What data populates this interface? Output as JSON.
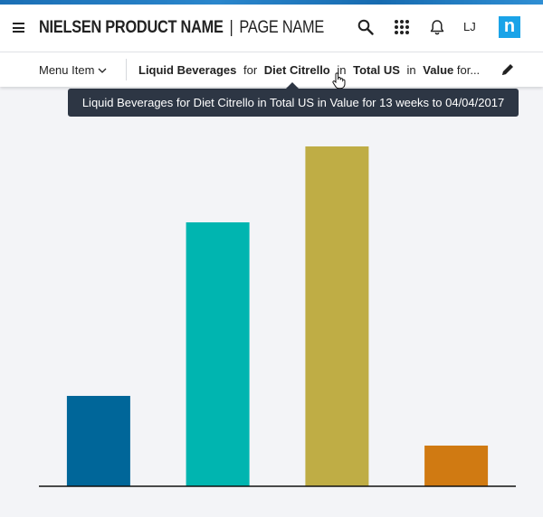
{
  "header": {
    "product_name": "NIELSEN PRODUCT NAME",
    "separator": "|",
    "page_name": "PAGE NAME",
    "user_initials": "LJ",
    "logo_letter": "n",
    "icons": [
      "menu-icon",
      "search-icon",
      "apps-grid-icon",
      "bell-icon"
    ]
  },
  "subbar": {
    "menu_item_label": "Menu Item",
    "breadcrumb": {
      "category": "Liquid Beverages",
      "for1": "for",
      "product": "Diet Citrello",
      "in1": "in",
      "market": "Total US",
      "in2": "in",
      "measure": "Value",
      "trail": "for..."
    }
  },
  "tooltip": {
    "text": "Liquid Beverages for Diet Citrello in Total US in Value for 13 weeks to 04/04/2017"
  },
  "colors": {
    "accent": "#1aa3e8",
    "tooltip_bg": "#2d3644"
  },
  "chart_data": {
    "type": "bar",
    "categories": [
      "",
      "",
      "",
      ""
    ],
    "values": [
      100,
      292,
      376,
      45
    ],
    "colors": [
      "#006699",
      "#00b5b0",
      "#bfad45",
      "#d07a12"
    ],
    "ylim": [
      0,
      400
    ],
    "grid": false,
    "legend": "none"
  }
}
